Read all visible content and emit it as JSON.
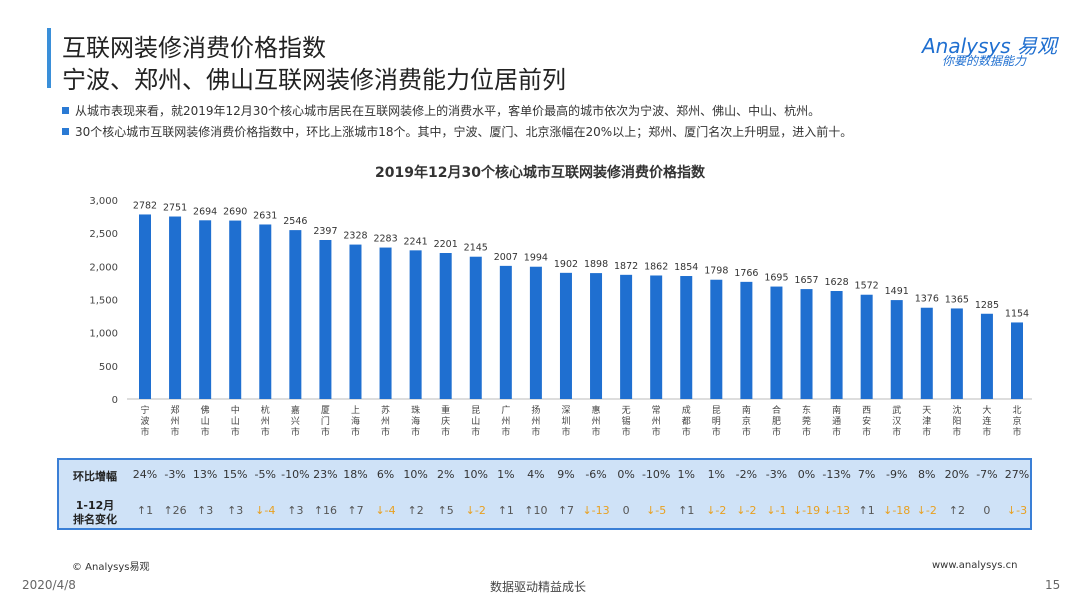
{
  "header": {
    "title1": "互联网装修消费价格指数",
    "title2": "宁波、郑州、佛山互联网装修消费能力位居前列",
    "bullets": [
      "从城市表现来看，就2019年12月30个核心城市居民在互联网装修上的消费水平，客单价最高的城市依次为宁波、郑州、佛山、中山、杭州。",
      "30个核心城市互联网装修消费价格指数中，环比上涨城市18个。其中，宁波、厦门、北京涨幅在20%以上；郑州、厦门名次上升明显，进入前十。"
    ]
  },
  "logo": {
    "brand": "Analysys 易观",
    "slogan": "你要的数据能力"
  },
  "chart_data": {
    "type": "bar",
    "title": "2019年12月30个核心城市互联网装修消费价格指数",
    "categories": [
      "宁波市",
      "郑州市",
      "佛山市",
      "中山市",
      "杭州市",
      "嘉兴市",
      "厦门市",
      "上海市",
      "苏州市",
      "珠海市",
      "重庆市",
      "昆山市",
      "广州市",
      "扬州市",
      "深圳市",
      "惠州市",
      "无锡市",
      "常州市",
      "成都市",
      "昆明市",
      "南京市",
      "合肥市",
      "东莞市",
      "南通市",
      "西安市",
      "武汉市",
      "天津市",
      "沈阳市",
      "大连市",
      "北京市"
    ],
    "values": [
      2782,
      2751,
      2694,
      2690,
      2631,
      2546,
      2397,
      2328,
      2283,
      2241,
      2201,
      2145,
      2007,
      1994,
      1902,
      1898,
      1872,
      1862,
      1854,
      1798,
      1766,
      1695,
      1657,
      1628,
      1572,
      1491,
      1376,
      1365,
      1285,
      1154
    ],
    "yticks": [
      "0",
      "500",
      "1,000",
      "1,500",
      "2,000",
      "2,500",
      "3,000"
    ],
    "ylim": [
      0,
      3000
    ],
    "bar_color": "#1f6fd0",
    "grid": false
  },
  "table": {
    "row1_label": "环比增幅",
    "row2_label_a": "1-12月",
    "row2_label_b": "排名变化",
    "mom": [
      "24%",
      "-3%",
      "13%",
      "15%",
      "-5%",
      "-10%",
      "23%",
      "18%",
      "6%",
      "10%",
      "2%",
      "10%",
      "1%",
      "4%",
      "9%",
      "-6%",
      "0%",
      "-10%",
      "1%",
      "1%",
      "-2%",
      "-3%",
      "0%",
      "-13%",
      "7%",
      "-9%",
      "8%",
      "20%",
      "-7%",
      "27%"
    ],
    "rank": [
      "↑1",
      "↑26",
      "↑3",
      "↑3",
      "↓-4",
      "↑3",
      "↑16",
      "↑7",
      "↓-4",
      "↑2",
      "↑5",
      "↓-2",
      "↑1",
      "↑10",
      "↑7",
      "↓-13",
      "0",
      "↓-5",
      "↑1",
      "↓-2",
      "↓-2",
      "↓-1",
      "↓-19",
      "↓-13",
      "↑1",
      "↓-18",
      "↓-2",
      "↑2",
      "0",
      "↓-3"
    ],
    "up_color": "#555555",
    "down_color": "#e8a020"
  },
  "footer": {
    "copyright": "© Analysys易观",
    "url": "www.analysys.cn",
    "date": "2020/4/8",
    "slogan": "数据驱动精益成长",
    "page": "15"
  }
}
